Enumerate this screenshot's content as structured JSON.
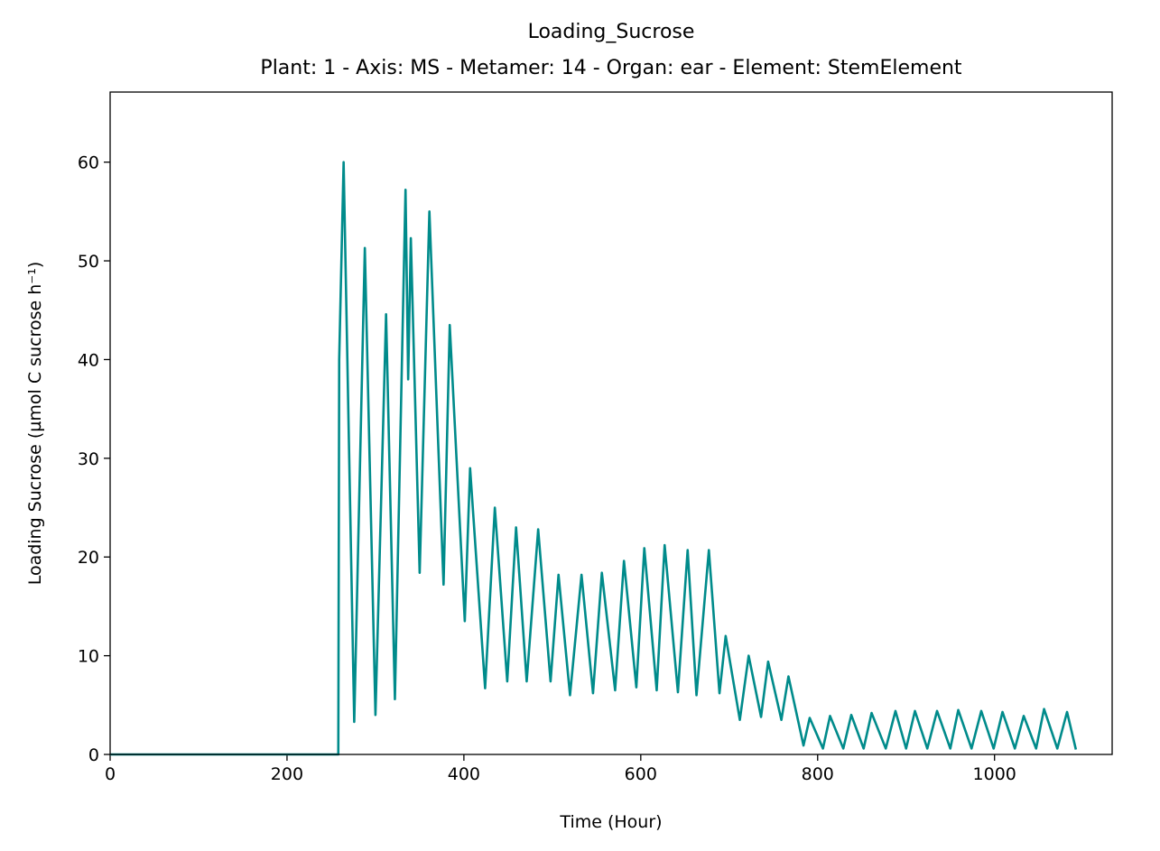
{
  "chart_data": {
    "type": "line",
    "title": "Loading_Sucrose",
    "subtitle": "Plant: 1 - Axis: MS - Metamer: 14 - Organ: ear - Element: StemElement",
    "x_label": "Time (Hour)",
    "y_label": "Loading Sucrose (µmol C sucrose h⁻¹)",
    "color": "#008b8b",
    "xlim": [
      0,
      1133
    ],
    "ylim": [
      0,
      67.1
    ],
    "xticks": [
      0,
      200,
      400,
      600,
      800,
      1000
    ],
    "yticks": [
      0,
      10,
      20,
      30,
      40,
      50,
      60
    ],
    "x": [
      0,
      258,
      259,
      264,
      276,
      288,
      300,
      312,
      322,
      334,
      337,
      340,
      350,
      361,
      377,
      384,
      401,
      407,
      424,
      435,
      449,
      459,
      471,
      484,
      498,
      507,
      520,
      533,
      546,
      556,
      571,
      581,
      595,
      604,
      618,
      627,
      642,
      653,
      663,
      677,
      689,
      696,
      712,
      722,
      736,
      744,
      759,
      767,
      784,
      791,
      806,
      814,
      829,
      838,
      852,
      861,
      877,
      888,
      900,
      910,
      924,
      935,
      950,
      959,
      974,
      985,
      999,
      1009,
      1023,
      1033,
      1047,
      1056,
      1071,
      1082,
      1092
    ],
    "values": [
      0,
      0,
      40,
      60,
      3.3,
      51.3,
      4,
      44.6,
      5.6,
      57.2,
      38,
      52.3,
      18.4,
      55,
      17.2,
      43.5,
      13.5,
      29,
      6.7,
      25,
      7.4,
      23,
      7.4,
      22.8,
      7.4,
      18.2,
      6,
      18.2,
      6.2,
      18.4,
      6.5,
      19.6,
      6.8,
      20.9,
      6.5,
      21.2,
      6.3,
      20.7,
      6,
      20.7,
      6.2,
      12,
      3.5,
      10,
      3.8,
      9.4,
      3.5,
      7.9,
      0.9,
      3.7,
      0.6,
      3.9,
      0.6,
      4,
      0.6,
      4.2,
      0.6,
      4.4,
      0.6,
      4.4,
      0.6,
      4.4,
      0.6,
      4.5,
      0.6,
      4.4,
      0.6,
      4.3,
      0.6,
      3.9,
      0.6,
      4.6,
      0.6,
      4.3,
      0.5
    ]
  }
}
